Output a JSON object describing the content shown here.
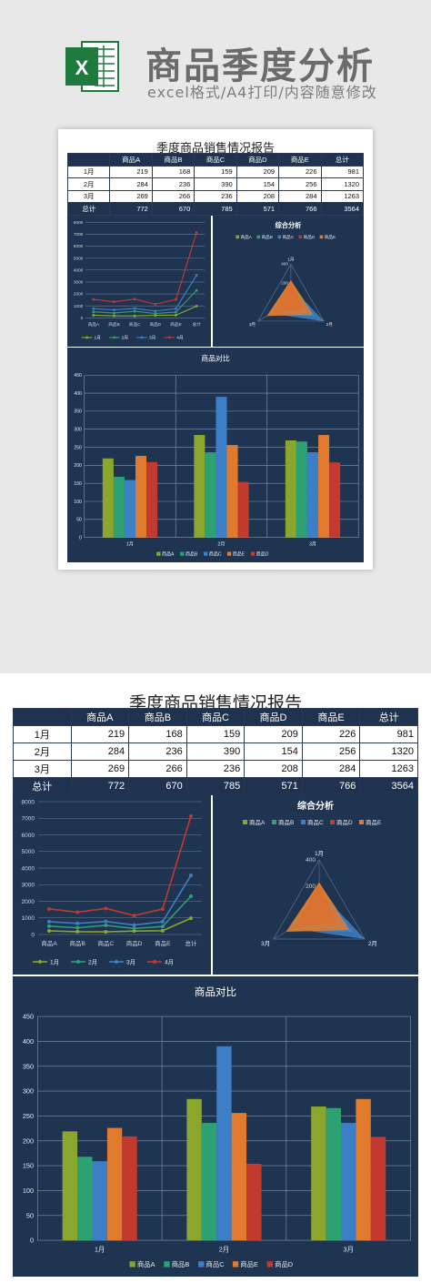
{
  "header": {
    "title": "商品季度分析",
    "subtitle": "excel格式/A4打印/内容随意修改",
    "logo_letter": "X"
  },
  "report": {
    "title": "季度商品销售情况报告",
    "columns": [
      "",
      "商品A",
      "商品B",
      "商品C",
      "商品D",
      "商品E",
      "总计"
    ],
    "rows": [
      {
        "label": "1月",
        "values": [
          219,
          168,
          159,
          209,
          226,
          981
        ]
      },
      {
        "label": "2月",
        "values": [
          284,
          236,
          390,
          154,
          256,
          1320
        ]
      },
      {
        "label": "3月",
        "values": [
          269,
          266,
          236,
          208,
          284,
          1263
        ]
      }
    ],
    "total": {
      "label": "总计",
      "values": [
        772,
        670,
        785,
        571,
        766,
        3564
      ]
    }
  },
  "chart_data": [
    {
      "type": "line",
      "title": "",
      "x": [
        "商品A",
        "商品B",
        "商品C",
        "商品D",
        "商品E",
        "总计"
      ],
      "ylim": [
        0,
        8000
      ],
      "yticks": [
        0,
        1000,
        2000,
        3000,
        4000,
        5000,
        6000,
        7000,
        8000
      ],
      "series": [
        {
          "name": "1月",
          "values": [
            219,
            168,
            159,
            209,
            226,
            981
          ],
          "color": "#8aa62d"
        },
        {
          "name": "2月",
          "values": [
            503,
            404,
            549,
            363,
            482,
            2301
          ],
          "color": "#2ea172"
        },
        {
          "name": "3月",
          "values": [
            772,
            670,
            785,
            571,
            766,
            3564
          ],
          "color": "#3d7fc7"
        },
        {
          "name": "4月",
          "values": [
            1544,
            1340,
            1570,
            1142,
            1532,
            7128
          ],
          "color": "#c2392e"
        }
      ],
      "legend": "bottom"
    },
    {
      "type": "radar",
      "title": "综合分析",
      "axes": [
        "1月",
        "2月",
        "3月"
      ],
      "rlim": [
        0,
        400
      ],
      "rticks": [
        200,
        400
      ],
      "series": [
        {
          "name": "商品A",
          "values": [
            219,
            284,
            269
          ],
          "color": "#8aa62d"
        },
        {
          "name": "商品B",
          "values": [
            168,
            236,
            266
          ],
          "color": "#2ea172"
        },
        {
          "name": "商品C",
          "values": [
            159,
            390,
            236
          ],
          "color": "#3d7fc7"
        },
        {
          "name": "商品D",
          "values": [
            209,
            154,
            208
          ],
          "color": "#c2392e"
        },
        {
          "name": "商品E",
          "values": [
            226,
            256,
            284
          ],
          "color": "#e27a2e"
        }
      ],
      "legend": "top"
    },
    {
      "type": "bar",
      "title": "商品对比",
      "categories": [
        "1月",
        "2月",
        "3月"
      ],
      "ylim": [
        0,
        450
      ],
      "yticks": [
        0,
        50,
        100,
        150,
        200,
        250,
        300,
        350,
        400,
        450
      ],
      "series": [
        {
          "name": "商品A",
          "values": [
            219,
            284,
            269
          ],
          "color": "#8aa62d"
        },
        {
          "name": "商品B",
          "values": [
            168,
            236,
            266
          ],
          "color": "#2ea172"
        },
        {
          "name": "商品C",
          "values": [
            159,
            390,
            236
          ],
          "color": "#3d7fc7"
        },
        {
          "name": "商品E",
          "values": [
            226,
            256,
            284
          ],
          "color": "#e27a2e"
        },
        {
          "name": "商品D",
          "values": [
            209,
            154,
            208
          ],
          "color": "#c2392e"
        }
      ],
      "legend": "bottom"
    }
  ]
}
